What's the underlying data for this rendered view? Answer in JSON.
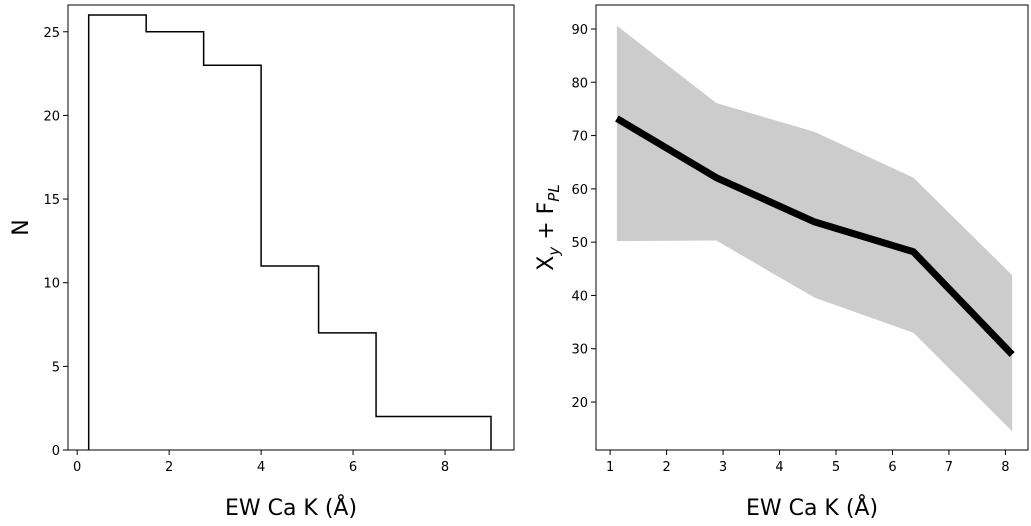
{
  "chart_data": [
    {
      "type": "histogram",
      "xlabel": "EW Ca K (Å)",
      "ylabel": "N",
      "xlim": [
        -0.2,
        9.5
      ],
      "ylim": [
        0,
        26.6
      ],
      "xticks": [
        0,
        2,
        4,
        6,
        8
      ],
      "yticks": [
        0,
        5,
        10,
        15,
        20,
        25
      ],
      "bin_edges": [
        0.25,
        1.5,
        2.75,
        4.0,
        5.25,
        6.5,
        7.75,
        9.0
      ],
      "counts": [
        26,
        25,
        23,
        11,
        7,
        2,
        2
      ],
      "histtype": "step",
      "color": "#000000",
      "grid": false,
      "legend": null
    },
    {
      "type": "line",
      "xlabel": "EW Ca K (Å)",
      "ylabel_main": "X",
      "ylabel_sub": "y",
      "ylabel_mid": " + F",
      "ylabel_sub2": "PL",
      "xlim": [
        0.75,
        8.4
      ],
      "ylim": [
        11,
        94.5
      ],
      "xticks": [
        1,
        2,
        3,
        4,
        5,
        6,
        7,
        8
      ],
      "yticks": [
        20,
        30,
        40,
        50,
        60,
        70,
        80,
        90
      ],
      "x": [
        1.12,
        2.88,
        4.62,
        6.37,
        8.12
      ],
      "y": [
        73.2,
        62.1,
        53.8,
        48.2,
        28.9
      ],
      "band_lower": [
        50.2,
        50.3,
        39.6,
        33.0,
        14.5
      ],
      "band_upper": [
        90.6,
        76.1,
        70.7,
        62.1,
        43.8
      ],
      "line_color": "#000000",
      "band_color": "#cccccc",
      "grid": false,
      "legend": null
    }
  ]
}
